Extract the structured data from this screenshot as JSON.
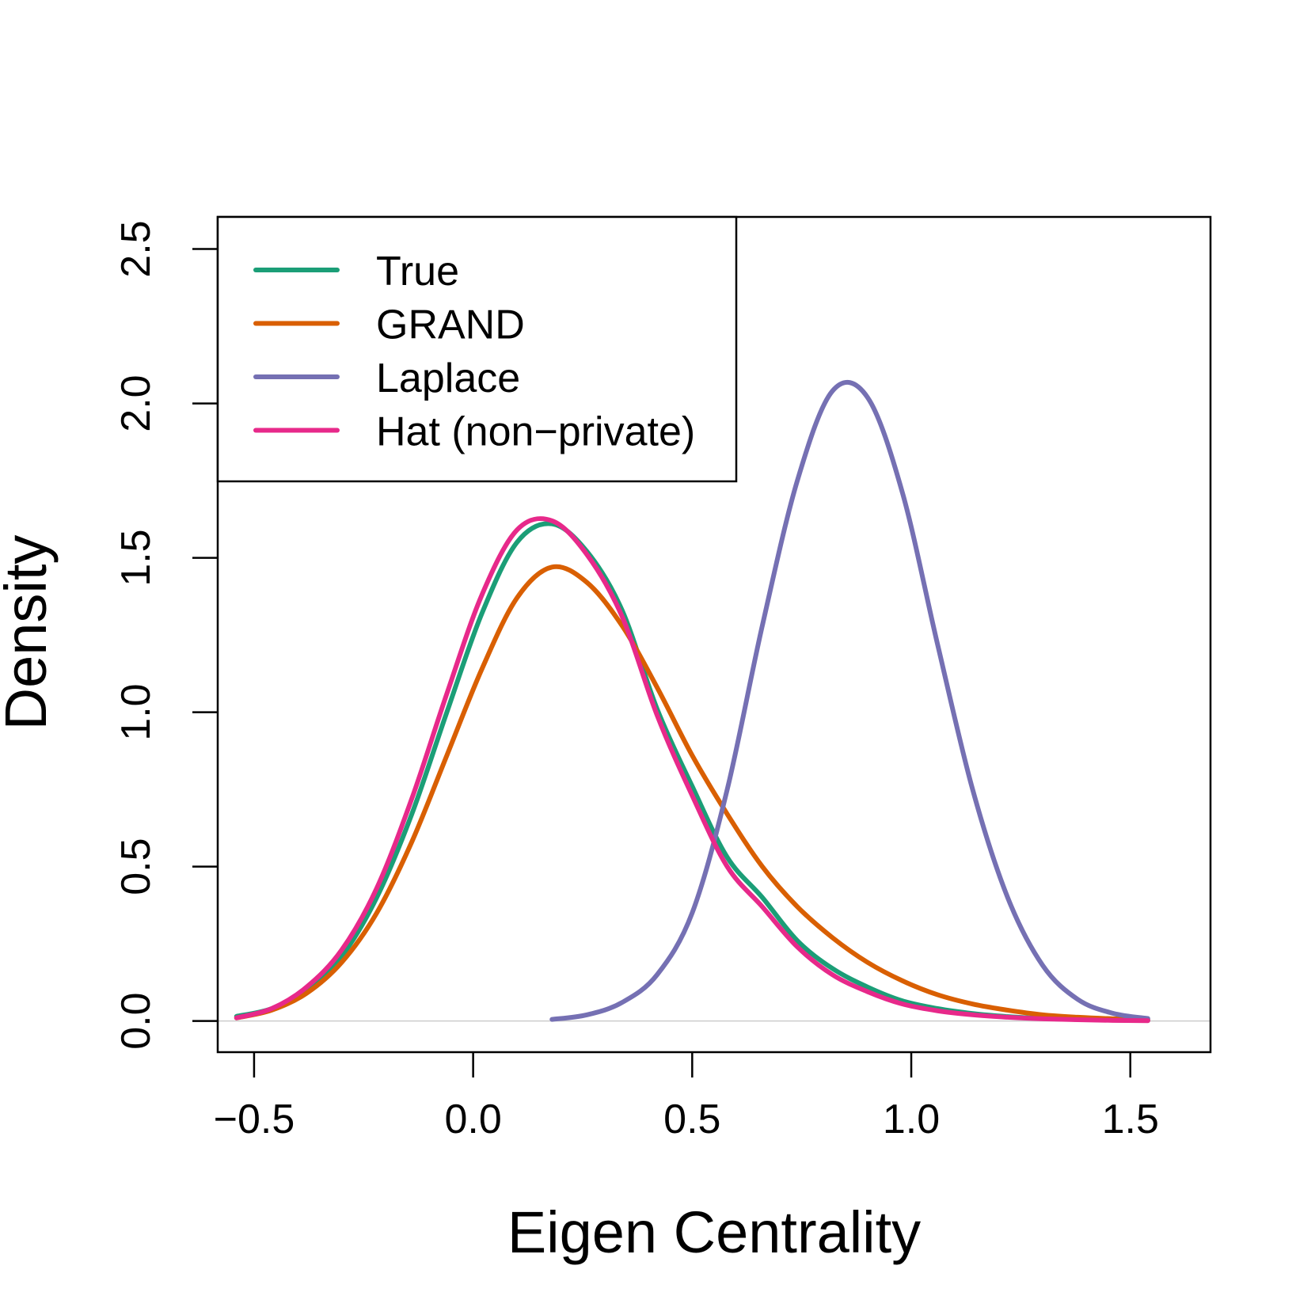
{
  "chart_data": {
    "type": "line",
    "xlabel": "Eigen Centrality",
    "ylabel": "Density",
    "x": [
      -0.54,
      -0.46,
      -0.38,
      -0.3,
      -0.22,
      -0.14,
      -0.06,
      0.02,
      0.1,
      0.18,
      0.26,
      0.34,
      0.42,
      0.5,
      0.58,
      0.66,
      0.74,
      0.82,
      0.9,
      0.98,
      1.06,
      1.14,
      1.22,
      1.3,
      1.38,
      1.46,
      1.54
    ],
    "series": [
      {
        "name": "True",
        "color": "#1b9e77",
        "values": [
          0.015,
          0.04,
          0.1,
          0.21,
          0.4,
          0.67,
          1.0,
          1.32,
          1.55,
          1.61,
          1.52,
          1.33,
          1.01,
          0.76,
          0.53,
          0.4,
          0.26,
          0.17,
          0.11,
          0.065,
          0.04,
          0.024,
          0.014,
          0.008,
          0.005,
          0.003,
          0.002
        ]
      },
      {
        "name": "GRAND",
        "color": "#d95f02",
        "values": [
          0.01,
          0.035,
          0.09,
          0.19,
          0.35,
          0.58,
          0.86,
          1.14,
          1.37,
          1.47,
          1.42,
          1.28,
          1.08,
          0.86,
          0.67,
          0.5,
          0.37,
          0.27,
          0.19,
          0.13,
          0.085,
          0.055,
          0.035,
          0.02,
          0.012,
          0.007,
          0.004
        ]
      },
      {
        "name": "Laplace",
        "color": "#7570b3",
        "values": [
          null,
          null,
          null,
          null,
          null,
          null,
          null,
          null,
          null,
          0.005,
          0.02,
          0.06,
          0.15,
          0.35,
          0.75,
          1.28,
          1.75,
          2.04,
          2.02,
          1.71,
          1.22,
          0.75,
          0.4,
          0.18,
          0.07,
          0.025,
          0.008
        ]
      },
      {
        "name": "Hat (non−private)",
        "color": "#e7298a",
        "values": [
          0.01,
          0.04,
          0.11,
          0.23,
          0.43,
          0.72,
          1.06,
          1.38,
          1.59,
          1.62,
          1.51,
          1.31,
          0.99,
          0.73,
          0.5,
          0.37,
          0.24,
          0.15,
          0.095,
          0.055,
          0.033,
          0.02,
          0.012,
          0.007,
          0.004,
          0.002,
          0.001
        ]
      }
    ],
    "xlim": [
      -0.583,
      1.683
    ],
    "ylim": [
      -0.101,
      2.604
    ],
    "xticks": [
      {
        "value": -0.5,
        "label": "−0.5"
      },
      {
        "value": 0,
        "label": "0.0"
      },
      0.5,
      {
        "value": 1,
        "label": "1.0"
      },
      1.5
    ],
    "yticks": [
      {
        "value": 0,
        "label": "0.0"
      },
      0.5,
      {
        "value": 1,
        "label": "1.0"
      },
      1.5,
      {
        "value": 2,
        "label": "2.0"
      },
      2.5
    ],
    "zero_line": true,
    "legend": "top-left",
    "grid": false
  }
}
